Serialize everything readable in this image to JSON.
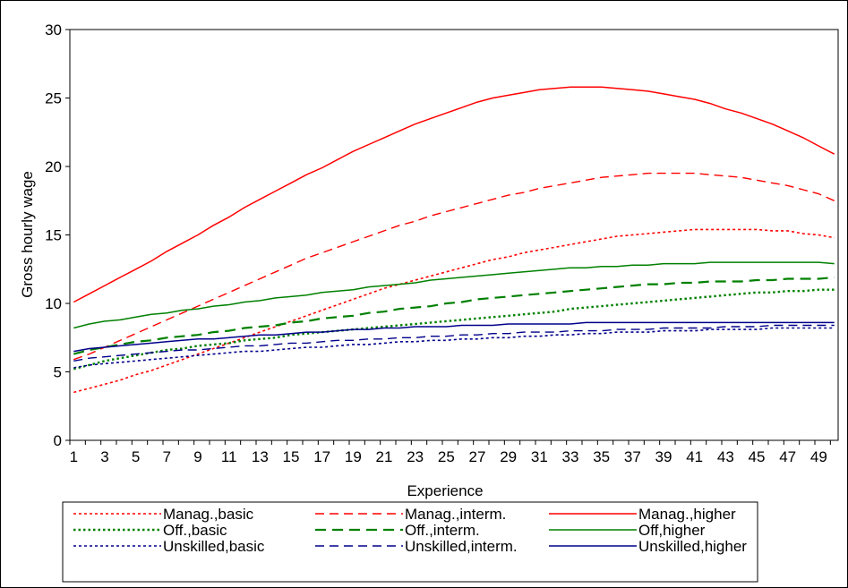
{
  "chart_data": {
    "type": "line",
    "title": "",
    "xlabel": "Experience",
    "ylabel": "Gross hourly wage",
    "xlim": [
      1,
      50
    ],
    "ylim": [
      0,
      30
    ],
    "x_ticks": [
      "1",
      "3",
      "5",
      "7",
      "9",
      "11",
      "13",
      "15",
      "17",
      "19",
      "21",
      "23",
      "25",
      "27",
      "29",
      "31",
      "33",
      "35",
      "37",
      "39",
      "41",
      "43",
      "45",
      "47",
      "49"
    ],
    "y_ticks": [
      "0",
      "5",
      "10",
      "15",
      "20",
      "25",
      "30"
    ],
    "grid": false,
    "legend_position": "bottom",
    "x": [
      1,
      2,
      3,
      4,
      5,
      6,
      7,
      8,
      9,
      10,
      11,
      12,
      13,
      14,
      15,
      16,
      17,
      18,
      19,
      20,
      21,
      22,
      23,
      24,
      25,
      26,
      27,
      28,
      29,
      30,
      31,
      32,
      33,
      34,
      35,
      36,
      37,
      38,
      39,
      40,
      41,
      42,
      43,
      44,
      45,
      46,
      47,
      48,
      49,
      50
    ],
    "series": [
      {
        "name": "Manag.,basic",
        "color": "#ff0000",
        "dash": "dotted",
        "width": 1.6,
        "values": [
          3.5,
          3.8,
          4.1,
          4.4,
          4.8,
          5.1,
          5.5,
          5.9,
          6.3,
          6.7,
          7.1,
          7.5,
          7.9,
          8.3,
          8.7,
          9.1,
          9.5,
          9.9,
          10.3,
          10.7,
          11.1,
          11.4,
          11.7,
          12.0,
          12.3,
          12.6,
          12.9,
          13.2,
          13.4,
          13.7,
          13.9,
          14.1,
          14.3,
          14.5,
          14.7,
          14.9,
          15.0,
          15.1,
          15.2,
          15.3,
          15.4,
          15.4,
          15.4,
          15.4,
          15.4,
          15.3,
          15.3,
          15.1,
          15.0,
          14.8
        ]
      },
      {
        "name": "Manag.,interm.",
        "color": "#ff0000",
        "dash": "dashed",
        "width": 1.4,
        "values": [
          5.9,
          6.3,
          6.8,
          7.3,
          7.8,
          8.3,
          8.8,
          9.3,
          9.8,
          10.3,
          10.8,
          11.3,
          11.8,
          12.3,
          12.8,
          13.3,
          13.7,
          14.1,
          14.5,
          14.9,
          15.3,
          15.7,
          16.0,
          16.4,
          16.7,
          17.0,
          17.3,
          17.6,
          17.9,
          18.1,
          18.4,
          18.6,
          18.8,
          19.0,
          19.2,
          19.3,
          19.4,
          19.5,
          19.5,
          19.5,
          19.5,
          19.4,
          19.3,
          19.2,
          19.0,
          18.8,
          18.6,
          18.3,
          18.0,
          17.5
        ]
      },
      {
        "name": "Manag.,higher",
        "color": "#ff0000",
        "dash": "solid",
        "width": 1.5,
        "values": [
          10.1,
          10.7,
          11.3,
          11.9,
          12.5,
          13.1,
          13.8,
          14.4,
          15.0,
          15.7,
          16.3,
          17.0,
          17.6,
          18.2,
          18.8,
          19.4,
          19.9,
          20.5,
          21.1,
          21.6,
          22.1,
          22.6,
          23.1,
          23.5,
          23.9,
          24.3,
          24.7,
          25.0,
          25.2,
          25.4,
          25.6,
          25.7,
          25.8,
          25.8,
          25.8,
          25.7,
          25.6,
          25.5,
          25.3,
          25.1,
          24.9,
          24.6,
          24.2,
          23.9,
          23.5,
          23.1,
          22.6,
          22.1,
          21.5,
          20.9
        ]
      },
      {
        "name": "Off.,basic",
        "color": "#008000",
        "dash": "dotted-thick",
        "width": 2.4,
        "values": [
          5.2,
          5.5,
          5.8,
          6.0,
          6.2,
          6.4,
          6.6,
          6.7,
          6.9,
          7.0,
          7.1,
          7.3,
          7.4,
          7.5,
          7.7,
          7.8,
          7.9,
          8.0,
          8.1,
          8.2,
          8.3,
          8.4,
          8.5,
          8.6,
          8.7,
          8.8,
          8.9,
          9.0,
          9.1,
          9.2,
          9.3,
          9.4,
          9.6,
          9.7,
          9.8,
          9.9,
          10.0,
          10.1,
          10.2,
          10.3,
          10.4,
          10.5,
          10.6,
          10.7,
          10.8,
          10.8,
          10.9,
          10.9,
          11.0,
          11.0
        ]
      },
      {
        "name": "Off.,interm.",
        "color": "#008000",
        "dash": "dashed-thick",
        "width": 2.2,
        "values": [
          6.3,
          6.6,
          6.8,
          7.0,
          7.2,
          7.3,
          7.5,
          7.6,
          7.7,
          7.9,
          8.0,
          8.2,
          8.3,
          8.4,
          8.6,
          8.7,
          8.9,
          9.0,
          9.1,
          9.3,
          9.4,
          9.6,
          9.7,
          9.8,
          10.0,
          10.1,
          10.3,
          10.4,
          10.5,
          10.6,
          10.7,
          10.8,
          10.9,
          11.0,
          11.1,
          11.2,
          11.3,
          11.4,
          11.4,
          11.5,
          11.5,
          11.6,
          11.6,
          11.6,
          11.7,
          11.7,
          11.8,
          11.8,
          11.8,
          11.9
        ]
      },
      {
        "name": "Off,higher",
        "color": "#008000",
        "dash": "solid",
        "width": 1.5,
        "values": [
          8.2,
          8.5,
          8.7,
          8.8,
          9.0,
          9.2,
          9.3,
          9.5,
          9.6,
          9.8,
          9.9,
          10.1,
          10.2,
          10.4,
          10.5,
          10.6,
          10.8,
          10.9,
          11.0,
          11.2,
          11.3,
          11.4,
          11.5,
          11.7,
          11.8,
          11.9,
          12.0,
          12.1,
          12.2,
          12.3,
          12.4,
          12.5,
          12.6,
          12.6,
          12.7,
          12.7,
          12.8,
          12.8,
          12.9,
          12.9,
          12.9,
          13.0,
          13.0,
          13.0,
          13.0,
          13.0,
          13.0,
          13.0,
          13.0,
          12.9
        ]
      },
      {
        "name": "Unskilled,basic",
        "color": "#00008b",
        "dash": "dotted",
        "width": 1.6,
        "values": [
          5.3,
          5.5,
          5.6,
          5.7,
          5.8,
          5.9,
          6.0,
          6.1,
          6.2,
          6.3,
          6.4,
          6.5,
          6.5,
          6.6,
          6.7,
          6.8,
          6.8,
          6.9,
          7.0,
          7.0,
          7.1,
          7.2,
          7.2,
          7.3,
          7.3,
          7.4,
          7.4,
          7.5,
          7.5,
          7.6,
          7.6,
          7.7,
          7.7,
          7.8,
          7.8,
          7.9,
          7.9,
          7.9,
          8.0,
          8.0,
          8.0,
          8.1,
          8.1,
          8.1,
          8.1,
          8.2,
          8.2,
          8.2,
          8.2,
          8.2
        ]
      },
      {
        "name": "Unskilled,interm.",
        "color": "#00008b",
        "dash": "dashed",
        "width": 1.4,
        "values": [
          5.8,
          6.0,
          6.1,
          6.2,
          6.3,
          6.4,
          6.5,
          6.6,
          6.6,
          6.7,
          6.8,
          6.9,
          6.9,
          7.0,
          7.1,
          7.1,
          7.2,
          7.3,
          7.3,
          7.4,
          7.4,
          7.5,
          7.5,
          7.6,
          7.6,
          7.7,
          7.7,
          7.8,
          7.8,
          7.9,
          7.9,
          7.9,
          8.0,
          8.0,
          8.0,
          8.1,
          8.1,
          8.1,
          8.2,
          8.2,
          8.2,
          8.2,
          8.3,
          8.3,
          8.3,
          8.4,
          8.4,
          8.4,
          8.4,
          8.4
        ]
      },
      {
        "name": "Unskilled,higher",
        "color": "#00008b",
        "dash": "solid",
        "width": 1.5,
        "values": [
          6.5,
          6.7,
          6.8,
          6.9,
          7.0,
          7.1,
          7.2,
          7.3,
          7.4,
          7.4,
          7.5,
          7.6,
          7.7,
          7.7,
          7.8,
          7.9,
          7.9,
          8.0,
          8.1,
          8.1,
          8.2,
          8.2,
          8.3,
          8.3,
          8.3,
          8.4,
          8.4,
          8.4,
          8.5,
          8.5,
          8.5,
          8.5,
          8.5,
          8.6,
          8.6,
          8.6,
          8.6,
          8.6,
          8.6,
          8.6,
          8.6,
          8.6,
          8.6,
          8.6,
          8.6,
          8.6,
          8.6,
          8.6,
          8.6,
          8.6
        ]
      }
    ]
  }
}
